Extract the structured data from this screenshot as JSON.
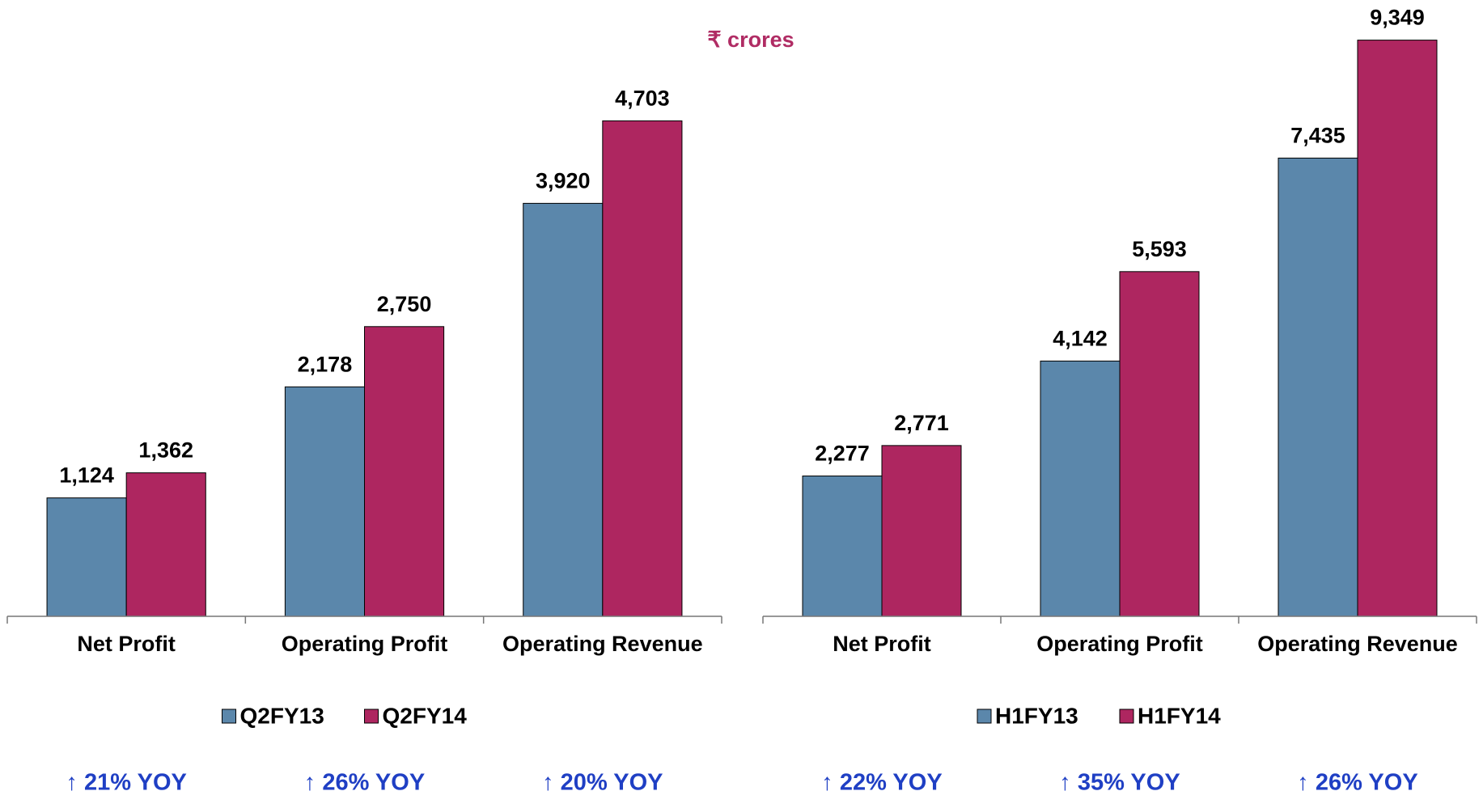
{
  "chart_data": [
    {
      "type": "bar",
      "title": "₹ crores",
      "categories": [
        "Net Profit",
        "Operating Profit",
        "Operating Revenue"
      ],
      "series": [
        {
          "name": "Q2FY13",
          "color": "#5b87ab",
          "values": [
            1124,
            2178,
            3920
          ],
          "value_labels": [
            "1,124",
            "2,178",
            "3,920"
          ]
        },
        {
          "name": "Q2FY14",
          "color": "#ae2660",
          "values": [
            1362,
            2750,
            4703
          ],
          "value_labels": [
            "1,362",
            "2,750",
            "4,703"
          ]
        }
      ],
      "ylim": [
        0,
        5850
      ],
      "annotations": [
        "↑ 21% YOY",
        "↑ 26% YOY",
        "↑ 20% YOY"
      ]
    },
    {
      "type": "bar",
      "categories": [
        "Net Profit",
        "Operating Profit",
        "Operating Revenue"
      ],
      "series": [
        {
          "name": "H1FY13",
          "color": "#5b87ab",
          "values": [
            2277,
            4142,
            7435
          ],
          "value_labels": [
            "2,277",
            "4,142",
            "7,435"
          ]
        },
        {
          "name": "H1FY14",
          "color": "#ae2660",
          "values": [
            2771,
            5593,
            9349
          ],
          "value_labels": [
            "2,771",
            "5,593",
            "9,349"
          ]
        }
      ],
      "ylim": [
        0,
        10000
      ],
      "annotations": [
        "↑ 22% YOY",
        "↑ 35% YOY",
        "↑ 26% YOY"
      ]
    }
  ]
}
